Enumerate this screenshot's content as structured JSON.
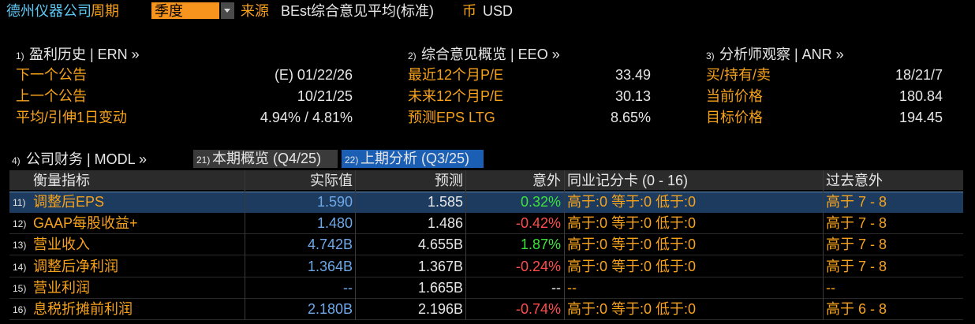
{
  "header": {
    "company": "德州仪器公司",
    "period_label": "周期",
    "period_value": "季度",
    "source_label": "来源",
    "source_value": "BEst综合意见平均(标准)",
    "currency_label": "币",
    "currency_value": "USD"
  },
  "panels": [
    {
      "number": "1)",
      "title": "盈利历史 | ERN »",
      "rows": [
        {
          "label": "下一个公告",
          "value": "(E)  01/22/26"
        },
        {
          "label": "上一个公告",
          "value": "10/21/25"
        },
        {
          "label": "平均/引伸1日变动",
          "value": "4.94% / 4.81%"
        }
      ]
    },
    {
      "number": "2)",
      "title": "综合意见概览 | EEO »",
      "rows": [
        {
          "label": "最近12个月P/E",
          "value": "33.49"
        },
        {
          "label": "未来12个月P/E",
          "value": "30.13"
        },
        {
          "label": "预测EPS LTG",
          "value": "8.65%"
        }
      ]
    },
    {
      "number": "3)",
      "title": "分析师观察 | ANR »",
      "rows": [
        {
          "label": "买/持有/卖",
          "value": "18/21/7"
        },
        {
          "label": "当前价格",
          "value": "180.84"
        },
        {
          "label": "目标价格",
          "value": "194.45"
        }
      ]
    }
  ],
  "financials": {
    "number": "4)",
    "title": "公司财务 | MODL »",
    "tabs": [
      {
        "number": "21)",
        "label": "本期概览 (Q4/25)"
      },
      {
        "number": "22)",
        "label": "上期分析 (Q3/25)"
      }
    ],
    "table": {
      "columns": {
        "label": "衡量指标",
        "actual": "实际值",
        "estimate": "预测",
        "surprise": "意外",
        "peer": "同业记分卡 (0 - 16)",
        "history": "过去意外"
      },
      "rows": [
        {
          "number": "11)",
          "label": "调整后EPS",
          "actual": "1.590",
          "estimate": "1.585",
          "surprise": "0.32%",
          "peer": "高于:0 等于:0 低于:0",
          "history": "高于 7 - 8"
        },
        {
          "number": "12)",
          "label": "GAAP每股收益+",
          "actual": "1.480",
          "estimate": "1.486",
          "surprise": "-0.42%",
          "peer": "高于:0 等于:0 低于:0",
          "history": "高于 7 - 8"
        },
        {
          "number": "13)",
          "label": "营业收入",
          "actual": "4.742B",
          "estimate": "4.655B",
          "surprise": "1.87%",
          "peer": "高于:0 等于:0 低于:0",
          "history": "高于 7 - 8"
        },
        {
          "number": "14)",
          "label": "调整后净利润",
          "actual": "1.364B",
          "estimate": "1.367B",
          "surprise": "-0.24%",
          "peer": "高于:0 等于:0 低于:0",
          "history": "高于 7 - 8"
        },
        {
          "number": "15)",
          "label": "营业利润",
          "actual": "--",
          "estimate": "1.665B",
          "surprise": "--",
          "peer": "--",
          "history": "--"
        },
        {
          "number": "16)",
          "label": "息税折摊前利润",
          "actual": "2.180B",
          "estimate": "2.196B",
          "surprise": "-0.74%",
          "peer": "高于:0 等于:0 低于:0",
          "history": "高于 6 - 8"
        }
      ]
    }
  }
}
